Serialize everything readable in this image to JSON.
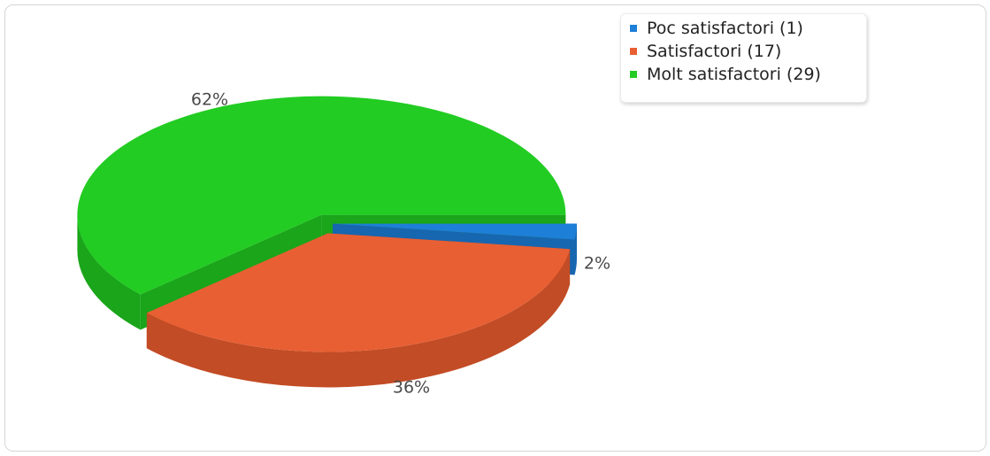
{
  "chart_data": {
    "type": "pie",
    "title": "",
    "three_d": true,
    "legend_position": "top-right",
    "categories": [
      "Poc satisfactori (1)",
      "Satisfactori (17)",
      "Molt satisfactori (29)"
    ],
    "values": [
      1,
      17,
      29
    ],
    "labels": [
      "2%",
      "36%",
      "62%"
    ],
    "colors": [
      "#1e7fd8",
      "#e85f33",
      "#22cc22"
    ],
    "side_colors": [
      "#1766b0",
      "#c24c25",
      "#1aa51a"
    ]
  }
}
